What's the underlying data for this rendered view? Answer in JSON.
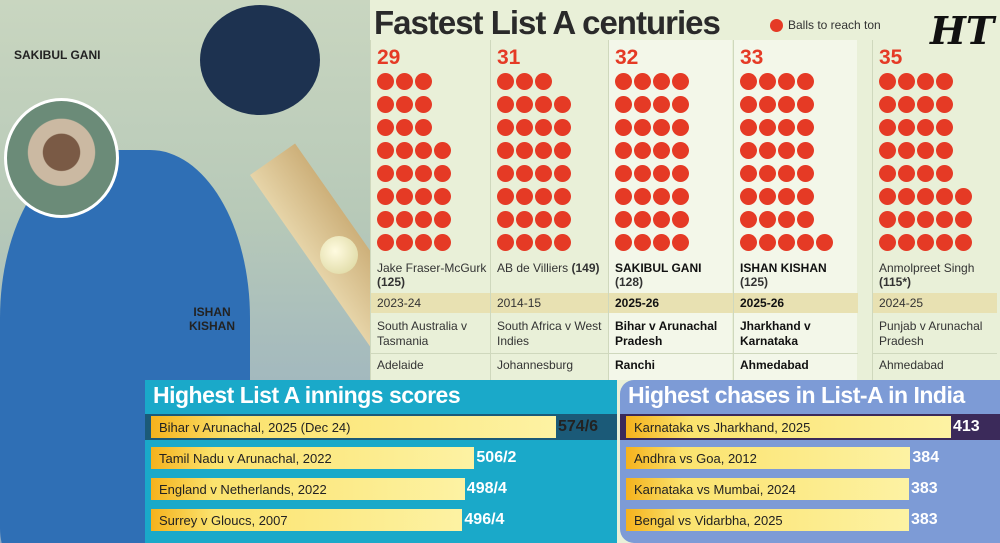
{
  "title": "Fastest List A centuries",
  "legend": "Balls to reach ton",
  "logo": "HT",
  "photo_labels": {
    "player1": "SAKIBUL GANI",
    "player2": "ISHAN KISHAN"
  },
  "colors": {
    "dot": "#e53a25",
    "left_panel": "#1aa9c9",
    "right_panel": "#7d9bd6"
  },
  "chart_data": {
    "type": "table",
    "title": "Fastest List A centuries",
    "legend": "Balls to reach ton",
    "entries": [
      {
        "balls": 29,
        "player": "Jake Fraser-McGurk",
        "score": "(125)",
        "season": "2023-24",
        "match": "South Australia v Tasmania",
        "venue": "Adelaide",
        "highlight": false
      },
      {
        "balls": 31,
        "player": "AB de Villiers",
        "score": "(149)",
        "season": "2014-15",
        "match": "South Africa v West Indies",
        "venue": "Johannesburg",
        "highlight": false
      },
      {
        "balls": 32,
        "player": "SAKIBUL GANI",
        "score": "(128)",
        "season": "2025-26",
        "match": "Bihar v Arunachal Pradesh",
        "venue": "Ranchi",
        "highlight": true
      },
      {
        "balls": 33,
        "player": "ISHAN KISHAN",
        "score": "(125)",
        "season": "2025-26",
        "match": "Jharkhand v Karnataka",
        "venue": "Ahmedabad",
        "highlight": true
      },
      {
        "balls": 35,
        "player": "Anmolpreet Singh",
        "score": "(115*)",
        "season": "2024-25",
        "match": "Punjab v Arunachal Pradesh",
        "venue": "Ahmedabad",
        "highlight": false
      }
    ]
  },
  "innings": {
    "title": "Highest List A innings scores",
    "rows": [
      {
        "label": "Bihar v Arunachal, 2025 (Dec 24)",
        "score": "574/6",
        "runs": 574
      },
      {
        "label": "Tamil Nadu v Arunachal, 2022",
        "score": "506/2",
        "runs": 506
      },
      {
        "label": "England v Netherlands, 2022",
        "score": "498/4",
        "runs": 498
      },
      {
        "label": "Surrey v Gloucs, 2007",
        "score": "496/4",
        "runs": 496
      }
    ]
  },
  "chases": {
    "title": "Highest chases in List-A in India",
    "rows": [
      {
        "label": "Karnataka vs Jharkhand, 2025",
        "score": "413",
        "runs": 413
      },
      {
        "label": "Andhra vs Goa, 2012",
        "score": "384",
        "runs": 384
      },
      {
        "label": "Karnataka vs Mumbai, 2024",
        "score": "383",
        "runs": 383
      },
      {
        "label": "Bengal vs Vidarbha, 2025",
        "score": "383",
        "runs": 383
      }
    ]
  }
}
